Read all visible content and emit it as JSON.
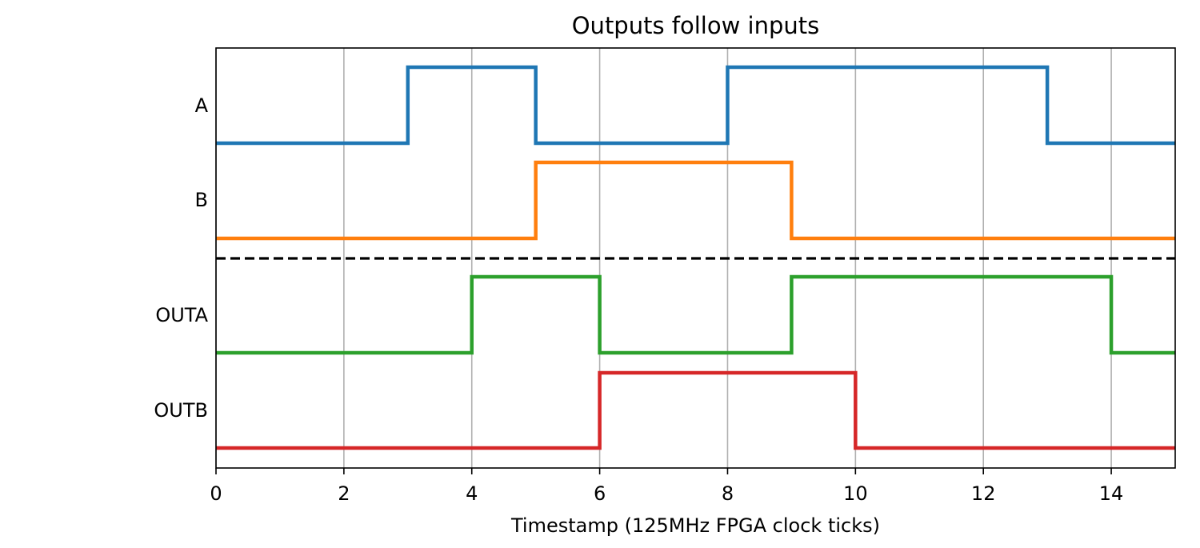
{
  "chart_data": {
    "type": "line",
    "title": "Outputs follow inputs",
    "xlabel": "Timestamp (125MHz FPGA clock ticks)",
    "ylabel": "",
    "xlim": [
      0,
      15
    ],
    "xticks": [
      0,
      2,
      4,
      6,
      8,
      10,
      12,
      14
    ],
    "xtick_labels": [
      "0",
      "2",
      "4",
      "6",
      "8",
      "10",
      "12",
      "14"
    ],
    "grid": "vertical",
    "separator": "dashed line between inputs and outputs",
    "step_style": "digital waveform (step)",
    "series": [
      {
        "name": "A",
        "color": "#1f77b4",
        "x": [
          0,
          3,
          5,
          8,
          13,
          15
        ],
        "values": [
          0,
          1,
          0,
          1,
          0,
          0
        ]
      },
      {
        "name": "B",
        "color": "#ff7f0e",
        "x": [
          0,
          5,
          9,
          15
        ],
        "values": [
          0,
          1,
          0,
          0
        ]
      },
      {
        "name": "OUTA",
        "color": "#2ca02c",
        "x": [
          0,
          4,
          6,
          9,
          14,
          15
        ],
        "values": [
          0,
          1,
          0,
          1,
          0,
          0
        ]
      },
      {
        "name": "OUTB",
        "color": "#d62728",
        "x": [
          0,
          6,
          10,
          15
        ],
        "values": [
          0,
          1,
          0,
          0
        ]
      }
    ]
  }
}
